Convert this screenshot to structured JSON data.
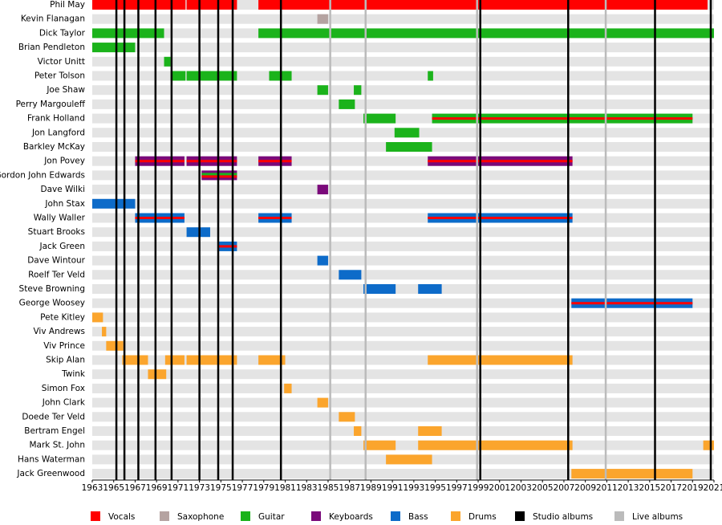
{
  "chart_data": {
    "type": "timeline",
    "xlim": [
      1963,
      2021
    ],
    "xticks": [
      1963,
      1965,
      1967,
      1969,
      1971,
      1973,
      1975,
      1977,
      1979,
      1981,
      1983,
      1985,
      1987,
      1989,
      1991,
      1993,
      1995,
      1997,
      1999,
      2001,
      2003,
      2005,
      2007,
      2009,
      2011,
      2013,
      2015,
      2017,
      2019,
      2021
    ],
    "roles": [
      {
        "name": "Vocals",
        "color": "#ff0000"
      },
      {
        "name": "Saxophone",
        "color": "#b5a3a1"
      },
      {
        "name": "Guitar",
        "color": "#1bb31b"
      },
      {
        "name": "Keyboards",
        "color": "#7a0a7a"
      },
      {
        "name": "Bass",
        "color": "#0d6bc9"
      },
      {
        "name": "Drums",
        "color": "#fba52d"
      }
    ],
    "album_lines": [
      {
        "name": "Studio albums",
        "color": "#000000",
        "years": [
          1965.25,
          1966.0,
          1967.3,
          1968.9,
          1970.4,
          1973.0,
          1974.75,
          1976.1,
          1980.6,
          1999.2,
          2007.4,
          2015.5,
          2020.7
        ]
      },
      {
        "name": "Live albums",
        "color": "#bbbbbb",
        "years": [
          1985.2,
          1988.5,
          1998.9,
          2010.9
        ]
      }
    ],
    "members": [
      {
        "name": "Phil May",
        "periods": [
          {
            "start": 1963,
            "end": 1971.7,
            "roles": [
              "Vocals"
            ]
          },
          {
            "start": 1971.8,
            "end": 1976.5,
            "roles": [
              "Vocals"
            ]
          },
          {
            "start": 1978.5,
            "end": 2020.4,
            "roles": [
              "Vocals"
            ]
          }
        ]
      },
      {
        "name": "Kevin Flanagan",
        "periods": [
          {
            "start": 1984,
            "end": 1985,
            "roles": [
              "Saxophone"
            ]
          }
        ]
      },
      {
        "name": "Dick Taylor",
        "periods": [
          {
            "start": 1963,
            "end": 1969.7,
            "roles": [
              "Guitar"
            ]
          },
          {
            "start": 1978.5,
            "end": 2021,
            "roles": [
              "Guitar"
            ]
          }
        ]
      },
      {
        "name": "Brian Pendleton",
        "periods": [
          {
            "start": 1963,
            "end": 1967,
            "roles": [
              "Guitar"
            ]
          }
        ]
      },
      {
        "name": "Victor Unitt",
        "periods": [
          {
            "start": 1969.7,
            "end": 1970.3,
            "roles": [
              "Guitar"
            ]
          }
        ]
      },
      {
        "name": "Peter Tolson",
        "periods": [
          {
            "start": 1970.3,
            "end": 1971.7,
            "roles": [
              "Guitar"
            ]
          },
          {
            "start": 1971.8,
            "end": 1976.5,
            "roles": [
              "Guitar"
            ]
          },
          {
            "start": 1979.5,
            "end": 1981.6,
            "roles": [
              "Guitar"
            ]
          },
          {
            "start": 1994.3,
            "end": 1994.8,
            "roles": [
              "Guitar"
            ]
          }
        ]
      },
      {
        "name": "Joe Shaw",
        "periods": [
          {
            "start": 1984,
            "end": 1985,
            "roles": [
              "Guitar"
            ]
          },
          {
            "start": 1987.4,
            "end": 1988.1,
            "roles": [
              "Guitar"
            ]
          }
        ]
      },
      {
        "name": "Perry Margouleff",
        "periods": [
          {
            "start": 1986,
            "end": 1987.5,
            "roles": [
              "Guitar"
            ]
          }
        ]
      },
      {
        "name": "Frank Holland",
        "periods": [
          {
            "start": 1988.3,
            "end": 1991.3,
            "roles": [
              "Guitar"
            ]
          },
          {
            "start": 1994.7,
            "end": 2019,
            "roles": [
              "Guitar",
              "Vocals"
            ]
          }
        ]
      },
      {
        "name": "Jon Langford",
        "periods": [
          {
            "start": 1991.2,
            "end": 1993.5,
            "roles": [
              "Guitar"
            ]
          }
        ]
      },
      {
        "name": "Barkley McKay",
        "periods": [
          {
            "start": 1990.4,
            "end": 1994.7,
            "roles": [
              "Guitar"
            ]
          }
        ]
      },
      {
        "name": "Jon Povey",
        "periods": [
          {
            "start": 1967,
            "end": 1971.6,
            "roles": [
              "Keyboards",
              "Vocals"
            ]
          },
          {
            "start": 1971.8,
            "end": 1976.5,
            "roles": [
              "Keyboards",
              "Vocals"
            ]
          },
          {
            "start": 1978.5,
            "end": 1981.6,
            "roles": [
              "Keyboards",
              "Vocals"
            ]
          },
          {
            "start": 1994.3,
            "end": 2007.8,
            "roles": [
              "Keyboards",
              "Vocals"
            ]
          }
        ]
      },
      {
        "name": "Gordon John Edwards",
        "periods": [
          {
            "start": 1973.2,
            "end": 1976.5,
            "roles": [
              "Keyboards",
              "Guitar",
              "Vocals"
            ]
          }
        ]
      },
      {
        "name": "Dave Wilki",
        "periods": [
          {
            "start": 1984,
            "end": 1985,
            "roles": [
              "Keyboards"
            ]
          }
        ]
      },
      {
        "name": "John Stax",
        "periods": [
          {
            "start": 1963,
            "end": 1967,
            "roles": [
              "Bass"
            ]
          }
        ]
      },
      {
        "name": "Wally Waller",
        "periods": [
          {
            "start": 1967,
            "end": 1971.6,
            "roles": [
              "Bass",
              "Vocals"
            ]
          },
          {
            "start": 1978.5,
            "end": 1981.6,
            "roles": [
              "Bass",
              "Vocals"
            ]
          },
          {
            "start": 1994.3,
            "end": 2007.8,
            "roles": [
              "Bass",
              "Vocals"
            ]
          }
        ]
      },
      {
        "name": "Stuart Brooks",
        "periods": [
          {
            "start": 1971.8,
            "end": 1974,
            "roles": [
              "Bass"
            ]
          }
        ]
      },
      {
        "name": "Jack Green",
        "periods": [
          {
            "start": 1974.8,
            "end": 1976.5,
            "roles": [
              "Bass",
              "Vocals"
            ]
          }
        ]
      },
      {
        "name": "Dave Wintour",
        "periods": [
          {
            "start": 1984,
            "end": 1985,
            "roles": [
              "Bass"
            ]
          }
        ]
      },
      {
        "name": "Roelf Ter Veld",
        "periods": [
          {
            "start": 1986,
            "end": 1988.1,
            "roles": [
              "Bass"
            ]
          }
        ]
      },
      {
        "name": "Steve Browning",
        "periods": [
          {
            "start": 1988.3,
            "end": 1991.3,
            "roles": [
              "Bass"
            ]
          },
          {
            "start": 1993.4,
            "end": 1995.6,
            "roles": [
              "Bass"
            ]
          }
        ]
      },
      {
        "name": "George Woosey",
        "periods": [
          {
            "start": 2007.7,
            "end": 2019,
            "roles": [
              "Bass",
              "Vocals"
            ]
          }
        ]
      },
      {
        "name": "Pete Kitley",
        "periods": [
          {
            "start": 1963,
            "end": 1964,
            "roles": [
              "Drums"
            ]
          }
        ]
      },
      {
        "name": "Viv Andrews",
        "periods": [
          {
            "start": 1963.9,
            "end": 1964.3,
            "roles": [
              "Drums"
            ]
          }
        ]
      },
      {
        "name": "Viv Prince",
        "periods": [
          {
            "start": 1964.3,
            "end": 1965.9,
            "roles": [
              "Drums"
            ]
          }
        ]
      },
      {
        "name": "Skip Alan",
        "periods": [
          {
            "start": 1965.8,
            "end": 1968.2,
            "roles": [
              "Drums"
            ]
          },
          {
            "start": 1969.8,
            "end": 1971.6,
            "roles": [
              "Drums"
            ]
          },
          {
            "start": 1971.8,
            "end": 1976.5,
            "roles": [
              "Drums"
            ]
          },
          {
            "start": 1978.5,
            "end": 1981,
            "roles": [
              "Drums"
            ]
          },
          {
            "start": 1994.3,
            "end": 2007.8,
            "roles": [
              "Drums"
            ]
          }
        ]
      },
      {
        "name": "Twink",
        "periods": [
          {
            "start": 1968.2,
            "end": 1969.9,
            "roles": [
              "Drums"
            ]
          }
        ]
      },
      {
        "name": "Simon Fox",
        "periods": [
          {
            "start": 1980.9,
            "end": 1981.6,
            "roles": [
              "Drums"
            ]
          }
        ]
      },
      {
        "name": "John Clark",
        "periods": [
          {
            "start": 1984,
            "end": 1985,
            "roles": [
              "Drums"
            ]
          }
        ]
      },
      {
        "name": "Doede Ter Veld",
        "periods": [
          {
            "start": 1986,
            "end": 1987.5,
            "roles": [
              "Drums"
            ]
          }
        ]
      },
      {
        "name": "Bertram Engel",
        "periods": [
          {
            "start": 1987.4,
            "end": 1988.1,
            "roles": [
              "Drums"
            ]
          },
          {
            "start": 1993.4,
            "end": 1995.6,
            "roles": [
              "Drums"
            ]
          }
        ]
      },
      {
        "name": "Mark St. John",
        "periods": [
          {
            "start": 1988.3,
            "end": 1991.3,
            "roles": [
              "Drums"
            ]
          },
          {
            "start": 1993.4,
            "end": 2007.8,
            "roles": [
              "Drums"
            ]
          },
          {
            "start": 2020,
            "end": 2021,
            "roles": [
              "Drums"
            ]
          }
        ]
      },
      {
        "name": "Hans Waterman",
        "periods": [
          {
            "start": 1990.4,
            "end": 1994.7,
            "roles": [
              "Drums"
            ]
          }
        ]
      },
      {
        "name": "Jack Greenwood",
        "periods": [
          {
            "start": 2007.7,
            "end": 2019,
            "roles": [
              "Drums"
            ]
          }
        ]
      }
    ]
  }
}
